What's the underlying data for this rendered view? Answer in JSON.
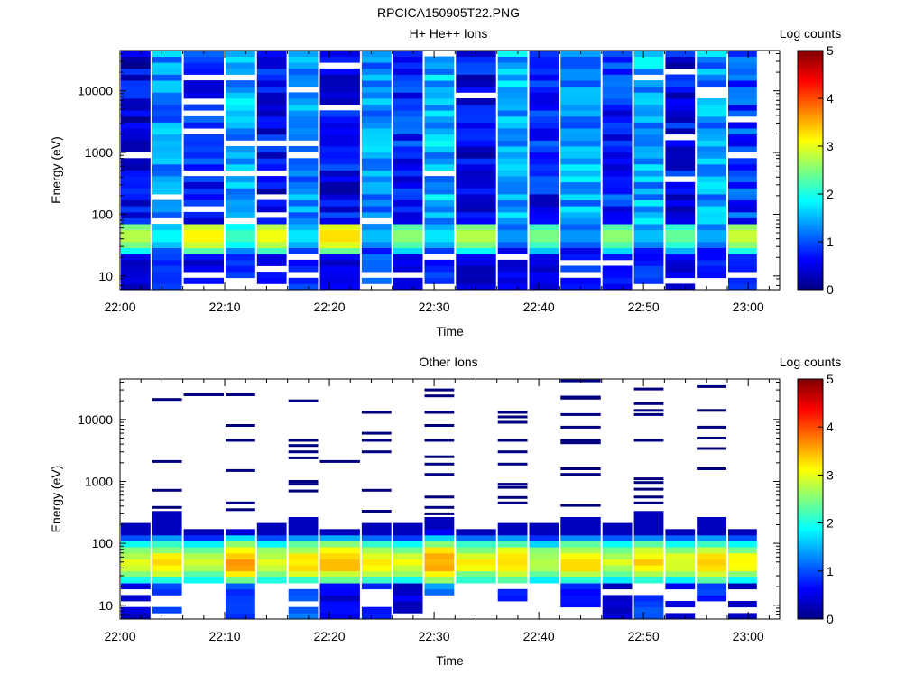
{
  "figure_title": "RPCICA150905T22.PNG",
  "colorbar_ticks": [
    "0",
    "1",
    "2",
    "3",
    "4",
    "5"
  ],
  "colormap": [
    "#00007f",
    "#0000ff",
    "#007fff",
    "#00ffff",
    "#7fff7f",
    "#ffff00",
    "#ff7f00",
    "#ff0000",
    "#7f0000"
  ],
  "chart_data": [
    {
      "type": "heatmap",
      "title": "H+ He++ Ions",
      "xlabel": "Time",
      "ylabel": "Energy (eV)",
      "colorbar_label": "Log counts",
      "yscale": "log",
      "xlim": [
        "22:00",
        "23:03"
      ],
      "ylim": [
        6,
        45000
      ],
      "clim": [
        0,
        5
      ],
      "x_ticks": [
        "22:00",
        "22:10",
        "22:20",
        "22:30",
        "22:40",
        "22:50",
        "23:00"
      ],
      "y_ticks": [
        "10",
        "100",
        "1000",
        "10000"
      ],
      "columns": [
        "22:00",
        "22:03",
        "22:06",
        "22:10",
        "22:13",
        "22:16",
        "22:19",
        "22:23",
        "22:26",
        "22:29",
        "22:32",
        "22:36",
        "22:39",
        "22:42",
        "22:46",
        "22:49",
        "22:52",
        "22:55",
        "22:58"
      ],
      "column_base_level": [
        0.5,
        1.3,
        0.7,
        1.5,
        0.6,
        1.3,
        0.6,
        1.4,
        0.8,
        1.5,
        0.6,
        1.5,
        0.7,
        1.4,
        0.8,
        1.5,
        0.6,
        1.4,
        0.9
      ],
      "peak_energy_eV": [
        25,
        70
      ],
      "peak_levels": [
        2.8,
        1.9,
        3.2,
        2.2,
        3.1,
        1.8,
        3.3,
        1.6,
        2.6,
        1.8,
        2.8,
        1.4,
        2.5,
        1.4,
        2.6,
        1.6,
        2.4,
        1.5,
        2.9
      ],
      "low_energy_levels": [
        0.2,
        0.7,
        0.3,
        0.6,
        0.4,
        0.6,
        0.3,
        0.8,
        0.4,
        0.6,
        0.2,
        0.3,
        0.2,
        0.6,
        0.4,
        0.6,
        0.3,
        0.6,
        0.5
      ]
    },
    {
      "type": "heatmap",
      "title": "Other Ions",
      "xlabel": "Time",
      "ylabel": "Energy (eV)",
      "colorbar_label": "Log counts",
      "yscale": "log",
      "xlim": [
        "22:00",
        "23:03"
      ],
      "ylim": [
        6,
        45000
      ],
      "clim": [
        0,
        5
      ],
      "x_ticks": [
        "22:00",
        "22:10",
        "22:20",
        "22:30",
        "22:40",
        "22:50",
        "23:00"
      ],
      "y_ticks": [
        "10",
        "100",
        "1000",
        "10000"
      ],
      "columns": [
        "22:00",
        "22:03",
        "22:06",
        "22:10",
        "22:13",
        "22:16",
        "22:19",
        "22:23",
        "22:26",
        "22:29",
        "22:32",
        "22:36",
        "22:39",
        "22:42",
        "22:46",
        "22:49",
        "22:52",
        "22:55",
        "22:58"
      ],
      "band_energy_eV": [
        22,
        250
      ],
      "band_top_eV": [
        230,
        300,
        160,
        190,
        210,
        260,
        190,
        220,
        200,
        250,
        170,
        220,
        200,
        240,
        210,
        300,
        190,
        250,
        190
      ],
      "band_peak_levels": [
        3.0,
        3.2,
        2.9,
        3.6,
        3.0,
        3.3,
        3.5,
        3.2,
        3.0,
        3.6,
        3.1,
        3.4,
        2.9,
        3.3,
        2.9,
        3.3,
        3.0,
        3.3,
        3.1
      ],
      "sparse_energies_eV": [
        [],
        [
          21000,
          2100,
          720,
          380
        ],
        [
          25000
        ],
        [
          25000,
          8000,
          4600,
          1500,
          450,
          350
        ],
        [],
        [
          20000,
          4600,
          3800,
          3000,
          2400,
          1000,
          900,
          700
        ],
        [
          2100
        ],
        [
          13000,
          6000,
          4600,
          3000,
          720,
          330
        ],
        [],
        [
          30000,
          24000,
          13000,
          8000,
          4600,
          2500,
          1900,
          1300,
          560,
          380,
          300
        ],
        [],
        [
          13000,
          11000,
          9000,
          4600,
          3000,
          1900,
          900,
          800,
          550,
          450
        ],
        [],
        [
          42000,
          23000,
          22000,
          12000,
          7500,
          4600,
          4200,
          1600,
          1300,
          410
        ],
        [],
        [
          31000,
          18000,
          14000,
          12000,
          4600,
          1100,
          960,
          750,
          560,
          450
        ],
        [],
        [
          34000,
          14000,
          7500,
          5000,
          3400,
          1600
        ],
        []
      ],
      "low_energy_levels": [
        0.2,
        0.6,
        0.0,
        0.7,
        0.0,
        0.9,
        0.3,
        0.6,
        0.2,
        1.1,
        0.0,
        0.7,
        0.0,
        0.6,
        0.2,
        0.7,
        0.2,
        0.6,
        0.2
      ]
    }
  ]
}
